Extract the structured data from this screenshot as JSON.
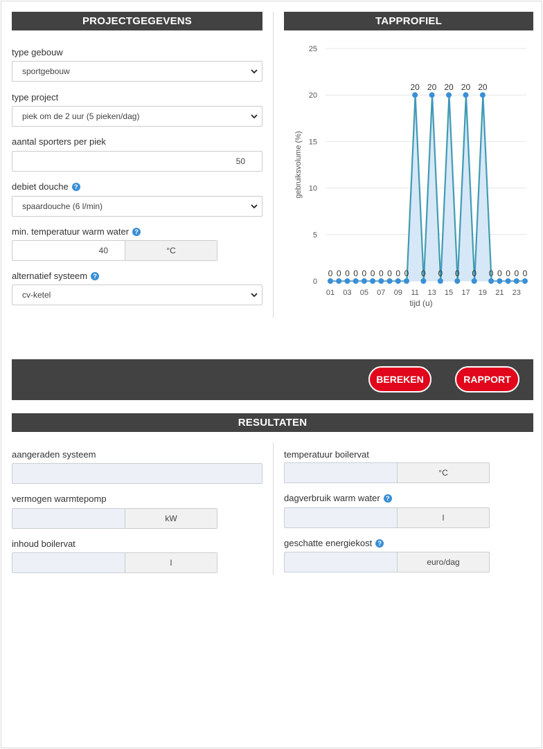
{
  "projectgegevens": {
    "header": "PROJECTGEGEVENS",
    "type_gebouw": {
      "label": "type gebouw",
      "value": "sportgebouw"
    },
    "type_project": {
      "label": "type project",
      "value": "piek om de 2 uur (5 pieken/dag)"
    },
    "aantal_sporters": {
      "label": "aantal sporters per piek",
      "value": "50"
    },
    "debiet_douche": {
      "label": "debiet douche",
      "value": "spaardouche (6 l/min)"
    },
    "min_temperatuur": {
      "label": "min. temperatuur warm water",
      "value": "40",
      "unit": "°C"
    },
    "alternatief_systeem": {
      "label": "alternatief systeem",
      "value": "cv-ketel"
    }
  },
  "tapprofiel": {
    "header": "TAPPROFIEL"
  },
  "actions": {
    "bereken_label": "BEREKEN",
    "rapport_label": "RAPPORT"
  },
  "resultaten": {
    "header": "RESULTATEN",
    "aangeraden_systeem": {
      "label": "aangeraden systeem",
      "value": ""
    },
    "vermogen_warmtepomp": {
      "label": "vermogen warmtepomp",
      "value": "",
      "unit": "kW"
    },
    "inhoud_boilervat": {
      "label": "inhoud boilervat",
      "value": "",
      "unit": "l"
    },
    "temperatuur_boilervat": {
      "label": "temperatuur boilervat",
      "value": "",
      "unit": "°C"
    },
    "dagverbruik_warm_water": {
      "label": "dagverbruik warm water",
      "value": "",
      "unit": "l"
    },
    "geschatte_energiekost": {
      "label": "geschatte energiekost",
      "value": "",
      "unit": "euro/dag"
    }
  },
  "help_icon_glyph": "?",
  "chart_data": {
    "type": "area",
    "title": "",
    "xlabel": "tijd (u)",
    "ylabel": "gebruiksvolume (%)",
    "ylim": [
      0,
      25
    ],
    "yticks": [
      0,
      5,
      10,
      15,
      20,
      25
    ],
    "x": [
      1,
      2,
      3,
      4,
      5,
      6,
      7,
      8,
      9,
      10,
      11,
      12,
      13,
      14,
      15,
      16,
      17,
      18,
      19,
      20,
      21,
      22,
      23,
      24
    ],
    "xtick_labels": [
      "01",
      "03",
      "05",
      "07",
      "09",
      "11",
      "13",
      "15",
      "17",
      "19",
      "21",
      "23"
    ],
    "series": [
      {
        "name": "",
        "values": [
          0,
          0,
          0,
          0,
          0,
          0,
          0,
          0,
          0,
          0,
          20,
          0,
          20,
          0,
          20,
          0,
          20,
          0,
          20,
          0,
          0,
          0,
          0,
          0
        ]
      }
    ],
    "data_labels": true,
    "grid": "horizontal",
    "colors": {
      "line": "#3a8fd6",
      "fill": "#cfe4f6",
      "accent_line": "#2e9e5b"
    }
  }
}
